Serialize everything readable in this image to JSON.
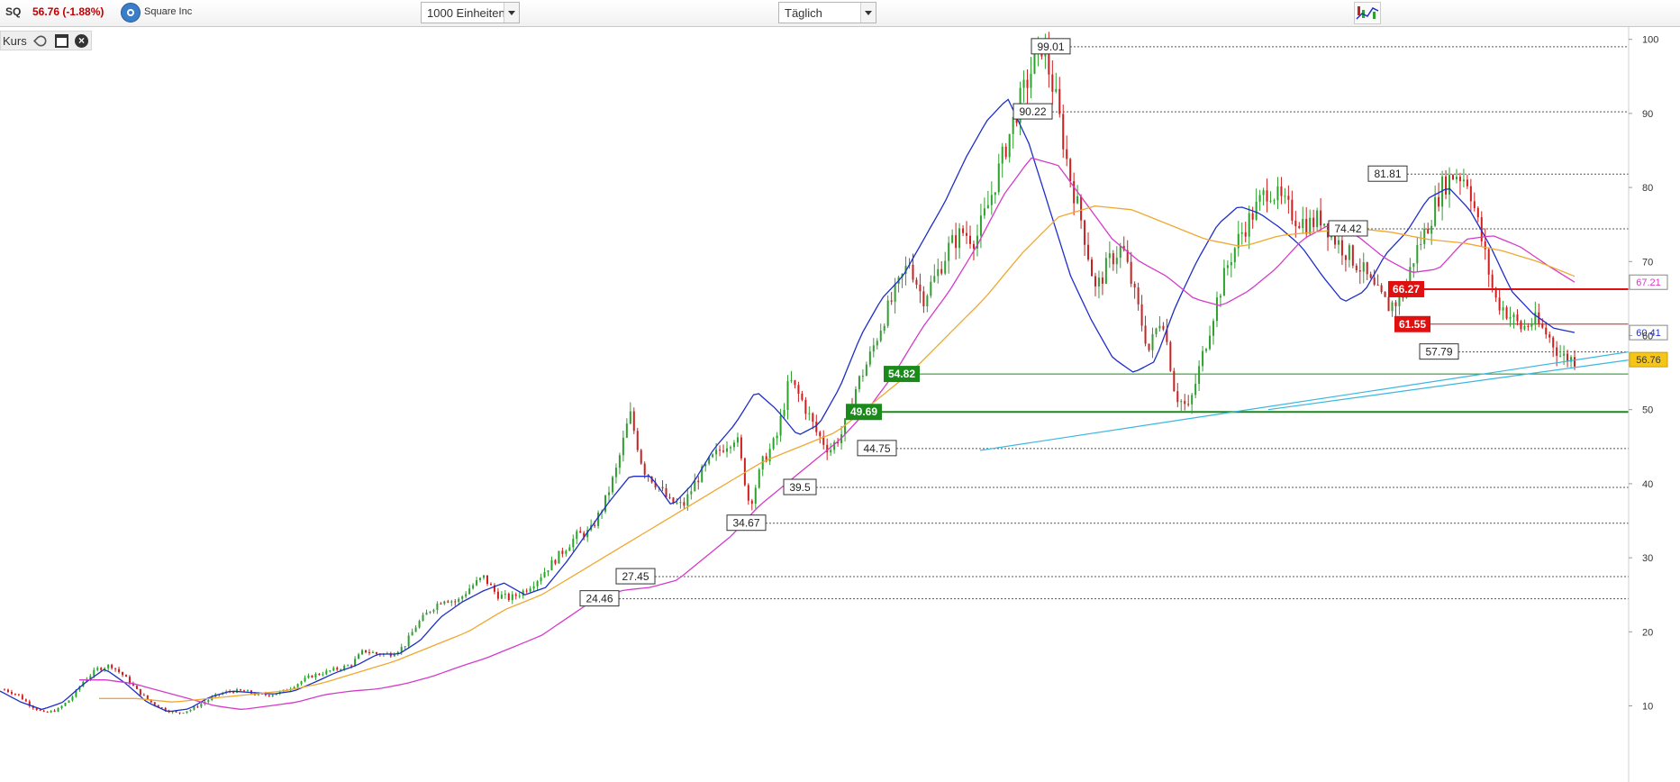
{
  "toolbar": {
    "symbol": "SQ",
    "price_text": "56.76 (-1.88%)",
    "company": "Square Inc",
    "units_select": "1000 Einheiten",
    "period_select": "Täglich",
    "company_icon": "square-logo-icon",
    "chart_icon": "chart-type-icon"
  },
  "panel": {
    "label": "Kurs",
    "tools": [
      "wrench-icon",
      "window-icon",
      "close-icon"
    ]
  },
  "colors": {
    "candle_up": "#2ea02e",
    "candle_down": "#cc1f1f",
    "ma_short": "#1e2ec8",
    "ma_mid": "#d43bc8",
    "ma_long": "#f0a830",
    "trendline": "#38b7e0",
    "support": "#1a8a1a",
    "resistance": "#e01010",
    "price_badge": "#f5c518"
  },
  "chart_data": {
    "type": "candlestick",
    "y_axis": {
      "ticks": [
        10,
        20,
        30,
        40,
        50,
        60,
        70,
        80,
        90,
        100
      ],
      "range": [
        9,
        101
      ],
      "position": "right"
    },
    "close_path": [
      12.2,
      11.5,
      10,
      9,
      9.5,
      11,
      13.5,
      15,
      15.5,
      14,
      12,
      10.5,
      9.5,
      9,
      9.5,
      10.5,
      11.5,
      12,
      12,
      11.5,
      11.5,
      12,
      13,
      14,
      14.5,
      15,
      15.5,
      17.5,
      17,
      17,
      18,
      21,
      23,
      24.5,
      24,
      26,
      27.4,
      25,
      24.5,
      25.5,
      27,
      29,
      31,
      33,
      33.5,
      37,
      42,
      49.5,
      42,
      40,
      37.5,
      37,
      40.5,
      43,
      45,
      46.5,
      37,
      43,
      46,
      54,
      51,
      47,
      44.5,
      47,
      53,
      57,
      62,
      66,
      70,
      65,
      68,
      72,
      74,
      73,
      78,
      84,
      90,
      95,
      99.5,
      92,
      82,
      75,
      66,
      70,
      72,
      65,
      58,
      63,
      52,
      50,
      57,
      64,
      70,
      74,
      77,
      80,
      78,
      76,
      75,
      76,
      73,
      71,
      69,
      66,
      64,
      65,
      71,
      75,
      80,
      82,
      81,
      73,
      65,
      63,
      61,
      62,
      60,
      57.2,
      56.76
    ],
    "ma_blue": [
      12,
      10.5,
      9.5,
      10.5,
      13,
      15,
      13,
      10.5,
      9.2,
      9.6,
      11.2,
      12,
      11.8,
      11.6,
      12,
      13.2,
      14.5,
      15.5,
      17,
      17,
      18.8,
      22,
      24,
      25.5,
      26.6,
      25,
      26,
      29.5,
      33.5,
      37.5,
      41,
      41,
      37,
      40,
      44.7,
      48,
      52.5,
      50,
      46.5,
      48,
      53,
      60,
      65,
      68,
      73,
      78,
      84,
      89,
      92,
      86,
      77,
      68,
      62,
      57,
      55,
      56.5,
      64,
      70,
      75,
      77.5,
      76.5,
      74.5,
      72,
      68,
      64.5,
      66,
      71,
      74,
      78.5,
      80,
      77,
      72,
      66,
      63,
      61,
      60.41
    ],
    "ma_magenta": [
      13.5,
      13.5,
      13,
      12,
      11,
      10,
      9.5,
      10,
      10.5,
      11.5,
      12,
      12.3,
      13,
      14,
      15.3,
      16.5,
      18,
      19.5,
      22,
      24.5,
      25.6,
      26,
      27,
      30,
      33,
      37,
      40,
      43,
      46,
      50,
      55,
      61,
      66,
      72,
      79,
      84,
      83,
      78,
      73,
      70,
      68,
      65,
      64,
      66,
      69,
      73,
      75,
      73.5,
      70.5,
      68.5,
      69,
      73,
      73.5,
      72,
      69.5,
      67.21
    ],
    "ma_orange": [
      11,
      11,
      10.5,
      11,
      11.5,
      12,
      13,
      14.5,
      16,
      18,
      20,
      23,
      25,
      28,
      31,
      34,
      37,
      40,
      43,
      45,
      47,
      51,
      55,
      60,
      65,
      71,
      76,
      77.5,
      77,
      75,
      73,
      72,
      73.5,
      74,
      74.5,
      74,
      73,
      72.5,
      71.5,
      70,
      68
    ],
    "annotations_boxed": [
      {
        "label": "99.01",
        "value": 99.01
      },
      {
        "label": "90.22",
        "value": 90.22
      },
      {
        "label": "81.81",
        "value": 81.81
      },
      {
        "label": "74.42",
        "value": 74.42
      },
      {
        "label": "57.79",
        "value": 57.79
      },
      {
        "label": "44.75",
        "value": 44.75
      },
      {
        "label": "39.5",
        "value": 39.5
      },
      {
        "label": "34.67",
        "value": 34.67
      },
      {
        "label": "27.45",
        "value": 27.45
      },
      {
        "label": "24.46",
        "value": 24.46
      }
    ],
    "support_levels": [
      {
        "label": "54.82",
        "value": 54.82
      },
      {
        "label": "49.69",
        "value": 49.69
      }
    ],
    "resistance_levels": [
      {
        "label": "66.27",
        "value": 66.27
      },
      {
        "label": "61.55",
        "value": 61.55
      }
    ],
    "right_axis_badges": [
      {
        "label": "67.21",
        "value": 67.21,
        "color": "#d43bc8"
      },
      {
        "label": "60.41",
        "value": 60.41,
        "color": "#1e2ec8"
      },
      {
        "label": "56.76",
        "value": 56.76,
        "color": "#f5c518"
      }
    ],
    "trendline": {
      "from": 44.5,
      "to": 57.8
    }
  }
}
